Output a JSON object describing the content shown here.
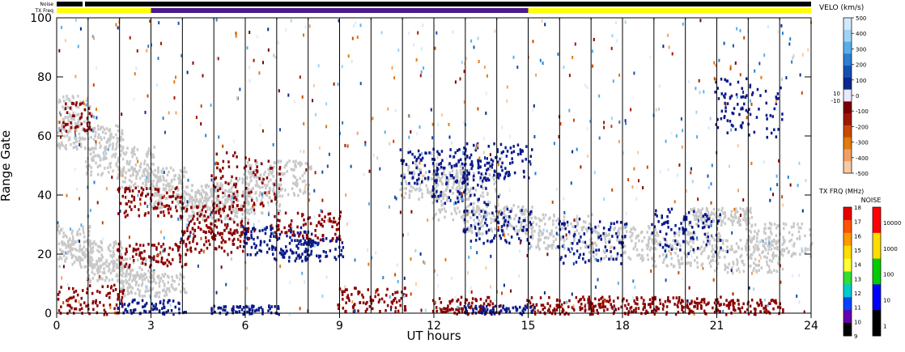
{
  "header": {
    "noise_label": "Noise",
    "txfreq_label": "TX Freq"
  },
  "velocity_scale": {
    "title": "VELO (km/s)",
    "ticks": [
      "500",
      "400",
      "300",
      "200",
      "100",
      "0",
      "-100",
      "-200",
      "-300",
      "-400",
      "-500"
    ],
    "ground_labels": [
      "10",
      "-10"
    ],
    "colors": [
      "#d0eaff",
      "#9fd3f5",
      "#5aaee8",
      "#2a7fd0",
      "#1550b0",
      "#0a2a8c",
      "#e8e8ff",
      "#7a0000",
      "#a01800",
      "#c84a00",
      "#e27a10",
      "#f2a060",
      "#f9c9a0"
    ]
  },
  "txfreq_scale": {
    "title": "TX FRQ (MHz)",
    "ticks": [
      "18",
      "17",
      "16",
      "15",
      "14",
      "13",
      "12",
      "11",
      "10",
      "9"
    ],
    "colors": [
      "#e60000",
      "#ff5500",
      "#ff9900",
      "#ffdd00",
      "#ffff33",
      "#33dd33",
      "#00cccc",
      "#0044ff",
      "#6600aa",
      "#000000"
    ]
  },
  "noise_scale": {
    "title": "NOISE",
    "ticks": [
      "10000",
      "1000",
      "100",
      "10",
      "1"
    ],
    "colors": [
      "#ff0000",
      "#ffdd00",
      "#00cc00",
      "#0000ff",
      "#000000"
    ]
  },
  "colors": {
    "toward": "#0a1a8c",
    "away": "#8b0000",
    "ground": "#c8c8c8",
    "txfreq_yellow": "#ffff00",
    "txfreq_purple": "#4b1a8c",
    "noise_black": "#000000"
  },
  "chart_data": {
    "type": "heatmap",
    "title": "",
    "xlabel": "UT hours",
    "ylabel": "Range Gate",
    "xlim": [
      0,
      24
    ],
    "ylim": [
      0,
      100
    ],
    "x_ticks": [
      "0",
      "3",
      "6",
      "9",
      "12",
      "15",
      "18",
      "21",
      "24"
    ],
    "y_ticks": [
      "0",
      "20",
      "40",
      "60",
      "80",
      "100"
    ],
    "txfreq_segments": [
      {
        "start": 0,
        "end": 3,
        "band": "yellow"
      },
      {
        "start": 3,
        "end": 15,
        "band": "purple"
      },
      {
        "start": 15,
        "end": 24,
        "band": "yellow"
      }
    ],
    "scatter_regions": [
      {
        "name": "ground",
        "points": [
          [
            0,
            68,
            6
          ],
          [
            1,
            60,
            4
          ],
          [
            2,
            52,
            5
          ],
          [
            3,
            46,
            4
          ],
          [
            4,
            40,
            4
          ],
          [
            5,
            37,
            5
          ],
          [
            6,
            40,
            6
          ],
          [
            7,
            46,
            6
          ],
          [
            0,
            24,
            6
          ],
          [
            1,
            20,
            5
          ],
          [
            2,
            15,
            4
          ],
          [
            3,
            10,
            4
          ],
          [
            12,
            45,
            6
          ],
          [
            13,
            40,
            8
          ],
          [
            14,
            32,
            5
          ],
          [
            16,
            28,
            6
          ],
          [
            18,
            24,
            6
          ],
          [
            20,
            22,
            6
          ],
          [
            22,
            20,
            6
          ],
          [
            23,
            25,
            6
          ],
          [
            21,
            33,
            3
          ]
        ]
      },
      {
        "name": "away",
        "points": [
          [
            0,
            67,
            5
          ],
          [
            3,
            38,
            5
          ],
          [
            5,
            32,
            5
          ],
          [
            6,
            45,
            10
          ],
          [
            8,
            30,
            5
          ],
          [
            13,
            3,
            3
          ],
          [
            16,
            3,
            3
          ],
          [
            18,
            3,
            3
          ],
          [
            20,
            3,
            3
          ],
          [
            22,
            2,
            3
          ],
          [
            1,
            5,
            5
          ],
          [
            5,
            25,
            4
          ],
          [
            3,
            20,
            4
          ],
          [
            10,
            5,
            4
          ]
        ]
      },
      {
        "name": "toward",
        "points": [
          [
            7,
            25,
            5
          ],
          [
            8,
            22,
            4
          ],
          [
            12,
            50,
            6
          ],
          [
            13,
            45,
            8
          ],
          [
            14,
            52,
            6
          ],
          [
            14,
            30,
            6
          ],
          [
            17,
            25,
            8
          ],
          [
            20,
            28,
            8
          ],
          [
            22,
            70,
            10
          ],
          [
            3,
            2,
            3
          ],
          [
            6,
            1,
            2
          ],
          [
            14,
            1,
            2
          ]
        ]
      }
    ]
  }
}
